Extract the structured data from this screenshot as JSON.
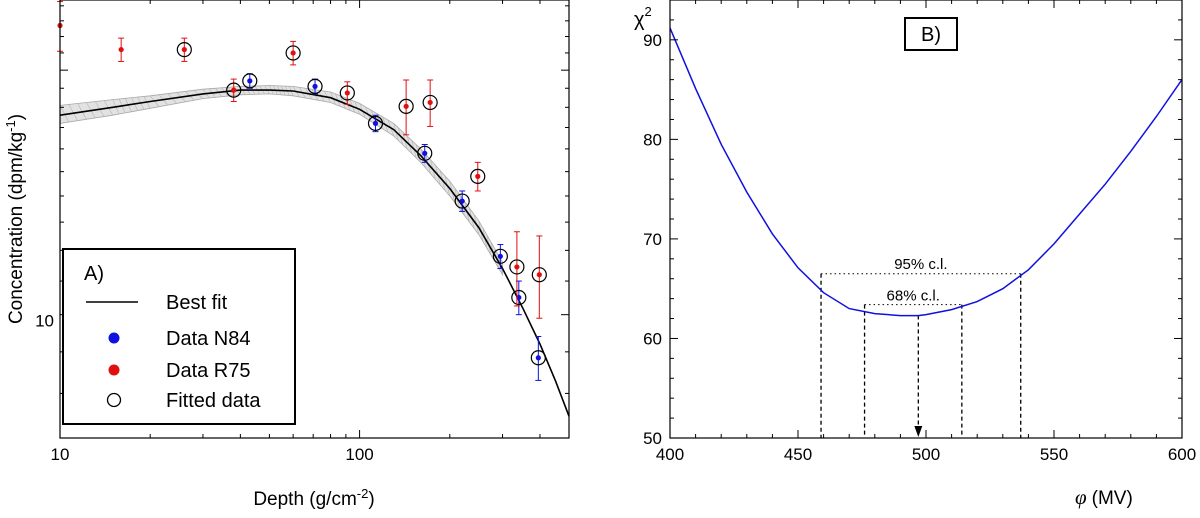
{
  "chart_data": [
    {
      "type": "scatter",
      "panel_label": "A)",
      "xlabel": "Depth (g/cm",
      "xlabel_sup": "-2",
      "xlabel_end": ")",
      "ylabel": "Concentration (dpm/kg",
      "ylabel_sup": "-1",
      "ylabel_end": ")",
      "xscale": "log",
      "yscale": "log",
      "xlim": [
        10,
        500
      ],
      "ylim": [
        7.05,
        24.4
      ],
      "x_ticks": [
        {
          "value": 10,
          "label": "10"
        },
        {
          "value": 100,
          "label": "100"
        }
      ],
      "y_ticks": [
        {
          "value": 10,
          "label": "10"
        }
      ],
      "legend": {
        "position": "bottom-left",
        "title": "A)",
        "entries": [
          {
            "label": "Best fit",
            "kind": "line",
            "color": "#000000"
          },
          {
            "label": "Data N84",
            "kind": "dot",
            "color": "#1010e0"
          },
          {
            "label": "Data R75",
            "kind": "dot",
            "color": "#e01010"
          },
          {
            "label": "Fitted data",
            "kind": "open-circle",
            "color": "#000000"
          }
        ]
      },
      "best_fit": {
        "name": "Best fit",
        "x": [
          10,
          15,
          20,
          30,
          40,
          50,
          60,
          80,
          100,
          130,
          160,
          200,
          250,
          300,
          350,
          400,
          450,
          500
        ],
        "y": [
          17.6,
          18.0,
          18.3,
          18.7,
          18.9,
          18.9,
          18.85,
          18.5,
          17.9,
          16.9,
          15.7,
          14.3,
          12.8,
          11.4,
          10.2,
          9.2,
          8.3,
          7.5
        ]
      },
      "uncertainty_band": {
        "x": [
          10,
          15,
          20,
          30,
          40,
          50,
          60,
          80,
          100,
          130,
          160,
          200,
          250,
          300
        ],
        "upper": [
          18.1,
          18.4,
          18.6,
          18.95,
          19.1,
          19.15,
          19.1,
          18.8,
          18.2,
          17.2,
          16.0,
          14.6,
          13.05,
          11.6
        ],
        "lower": [
          17.2,
          17.6,
          17.95,
          18.45,
          18.65,
          18.7,
          18.6,
          18.25,
          17.65,
          16.6,
          15.4,
          14.0,
          12.55,
          11.2
        ]
      },
      "series": [
        {
          "name": "Data N84",
          "color": "#1010e0",
          "points": [
            {
              "x": 43,
              "y": 19.4,
              "err": 0.4,
              "fitted": true
            },
            {
              "x": 71,
              "y": 19.1,
              "err": 0.4,
              "fitted": true
            },
            {
              "x": 113,
              "y": 17.2,
              "err": 0.4,
              "fitted": true
            },
            {
              "x": 165,
              "y": 15.8,
              "err": 0.4,
              "fitted": true
            },
            {
              "x": 220,
              "y": 13.8,
              "err": 0.4,
              "fitted": true
            },
            {
              "x": 295,
              "y": 11.8,
              "err": 0.4,
              "fitted": true
            },
            {
              "x": 340,
              "y": 10.5,
              "err": 0.5,
              "fitted": true
            },
            {
              "x": 395,
              "y": 8.85,
              "err": 0.55,
              "fitted": true
            }
          ]
        },
        {
          "name": "Data R75",
          "color": "#e01010",
          "points": [
            {
              "x": 10,
              "y": 22.7,
              "err": 1.6,
              "fitted": false
            },
            {
              "x": 16,
              "y": 21.2,
              "err": 0.7,
              "fitted": false
            },
            {
              "x": 26,
              "y": 21.2,
              "err": 0.7,
              "fitted": true
            },
            {
              "x": 38,
              "y": 18.9,
              "err": 0.6,
              "fitted": true
            },
            {
              "x": 60,
              "y": 21.0,
              "err": 0.7,
              "fitted": true
            },
            {
              "x": 91,
              "y": 18.75,
              "err": 0.6,
              "fitted": true
            },
            {
              "x": 143,
              "y": 18.05,
              "err": 1.4,
              "fitted": true
            },
            {
              "x": 172,
              "y": 18.25,
              "err": 1.2,
              "fitted": true
            },
            {
              "x": 248,
              "y": 14.8,
              "err": 0.6,
              "fitted": true
            },
            {
              "x": 335,
              "y": 11.45,
              "err": 1.2,
              "fitted": true
            },
            {
              "x": 398,
              "y": 11.2,
              "err": 1.3,
              "fitted": true
            }
          ]
        }
      ]
    },
    {
      "type": "line",
      "panel_label": "B)",
      "xlabel": "(MV)",
      "xlabel_symbol": "φ",
      "ylabel": "χ",
      "ylabel_sup": "2",
      "xlim": [
        400,
        600
      ],
      "ylim": [
        50,
        94
      ],
      "x_ticks": [
        400,
        450,
        500,
        550,
        600
      ],
      "y_ticks": [
        50,
        60,
        70,
        80,
        90
      ],
      "curve": {
        "name": "chi-square",
        "color": "#1010e0",
        "x": [
          400,
          410,
          420,
          430,
          440,
          450,
          460,
          470,
          480,
          490,
          497,
          500,
          510,
          520,
          530,
          540,
          550,
          560,
          570,
          580,
          590,
          600
        ],
        "y": [
          91.2,
          85.1,
          79.5,
          74.7,
          70.5,
          67.1,
          64.6,
          63.0,
          62.5,
          62.3,
          62.3,
          62.4,
          62.9,
          63.7,
          65.0,
          66.9,
          69.5,
          72.5,
          75.5,
          78.8,
          82.3,
          86.0
        ]
      },
      "confidence_intervals": [
        {
          "label": "95% c.l.",
          "level": 66.5,
          "x_low": 459,
          "x_high": 537
        },
        {
          "label": "68% c.l.",
          "level": 63.4,
          "x_low": 476,
          "x_high": 514
        }
      ],
      "minimum": {
        "x": 497,
        "y": 62.3
      }
    }
  ]
}
